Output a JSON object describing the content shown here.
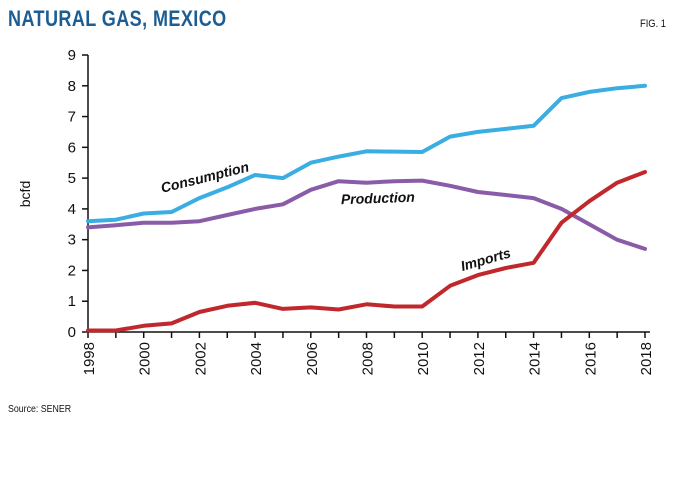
{
  "header": {
    "title": "NATURAL GAS, MEXICO",
    "fig_label": "FIG. 1"
  },
  "footer": {
    "source": "Source: SENER"
  },
  "colors": {
    "title": "#1c5e93",
    "consumption": "#3aaee3",
    "production": "#8a5ca8",
    "imports": "#c0282d",
    "axis": "#111111"
  },
  "chart_data": {
    "type": "line",
    "title": "NATURAL GAS, MEXICO",
    "xlabel": "",
    "ylabel": "bcfd",
    "xlim": [
      1998,
      2018
    ],
    "ylim": [
      0,
      9
    ],
    "y_ticks": [
      "0",
      "1",
      "2",
      "3",
      "4",
      "5",
      "6",
      "7",
      "8",
      "9"
    ],
    "x_ticks": [
      "1998",
      "2000",
      "2002",
      "2004",
      "2006",
      "2008",
      "2010",
      "2012",
      "2014",
      "2016",
      "2018"
    ],
    "x": [
      1998,
      1999,
      2000,
      2001,
      2002,
      2003,
      2004,
      2005,
      2006,
      2007,
      2008,
      2009,
      2010,
      2011,
      2012,
      2013,
      2014,
      2015,
      2016,
      2017,
      2018
    ],
    "grid": false,
    "series": [
      {
        "name": "Consumption",
        "color": "#3aaee3",
        "values": [
          3.6,
          3.65,
          3.85,
          3.9,
          4.35,
          4.7,
          5.1,
          5.0,
          5.5,
          5.7,
          5.87,
          5.86,
          5.85,
          6.35,
          6.5,
          6.6,
          6.7,
          7.6,
          7.8,
          7.92,
          8.0
        ]
      },
      {
        "name": "Production",
        "color": "#8a5ca8",
        "values": [
          3.4,
          3.47,
          3.55,
          3.55,
          3.6,
          3.8,
          4.0,
          4.15,
          4.62,
          4.9,
          4.85,
          4.9,
          4.92,
          4.75,
          4.55,
          4.45,
          4.35,
          4.0,
          3.5,
          3.0,
          2.7
        ]
      },
      {
        "name": "Imports",
        "color": "#c0282d",
        "values": [
          0.05,
          0.05,
          0.2,
          0.28,
          0.65,
          0.85,
          0.95,
          0.75,
          0.8,
          0.73,
          0.9,
          0.83,
          0.83,
          1.5,
          1.85,
          2.08,
          2.25,
          3.55,
          4.25,
          4.85,
          5.2
        ]
      }
    ]
  }
}
